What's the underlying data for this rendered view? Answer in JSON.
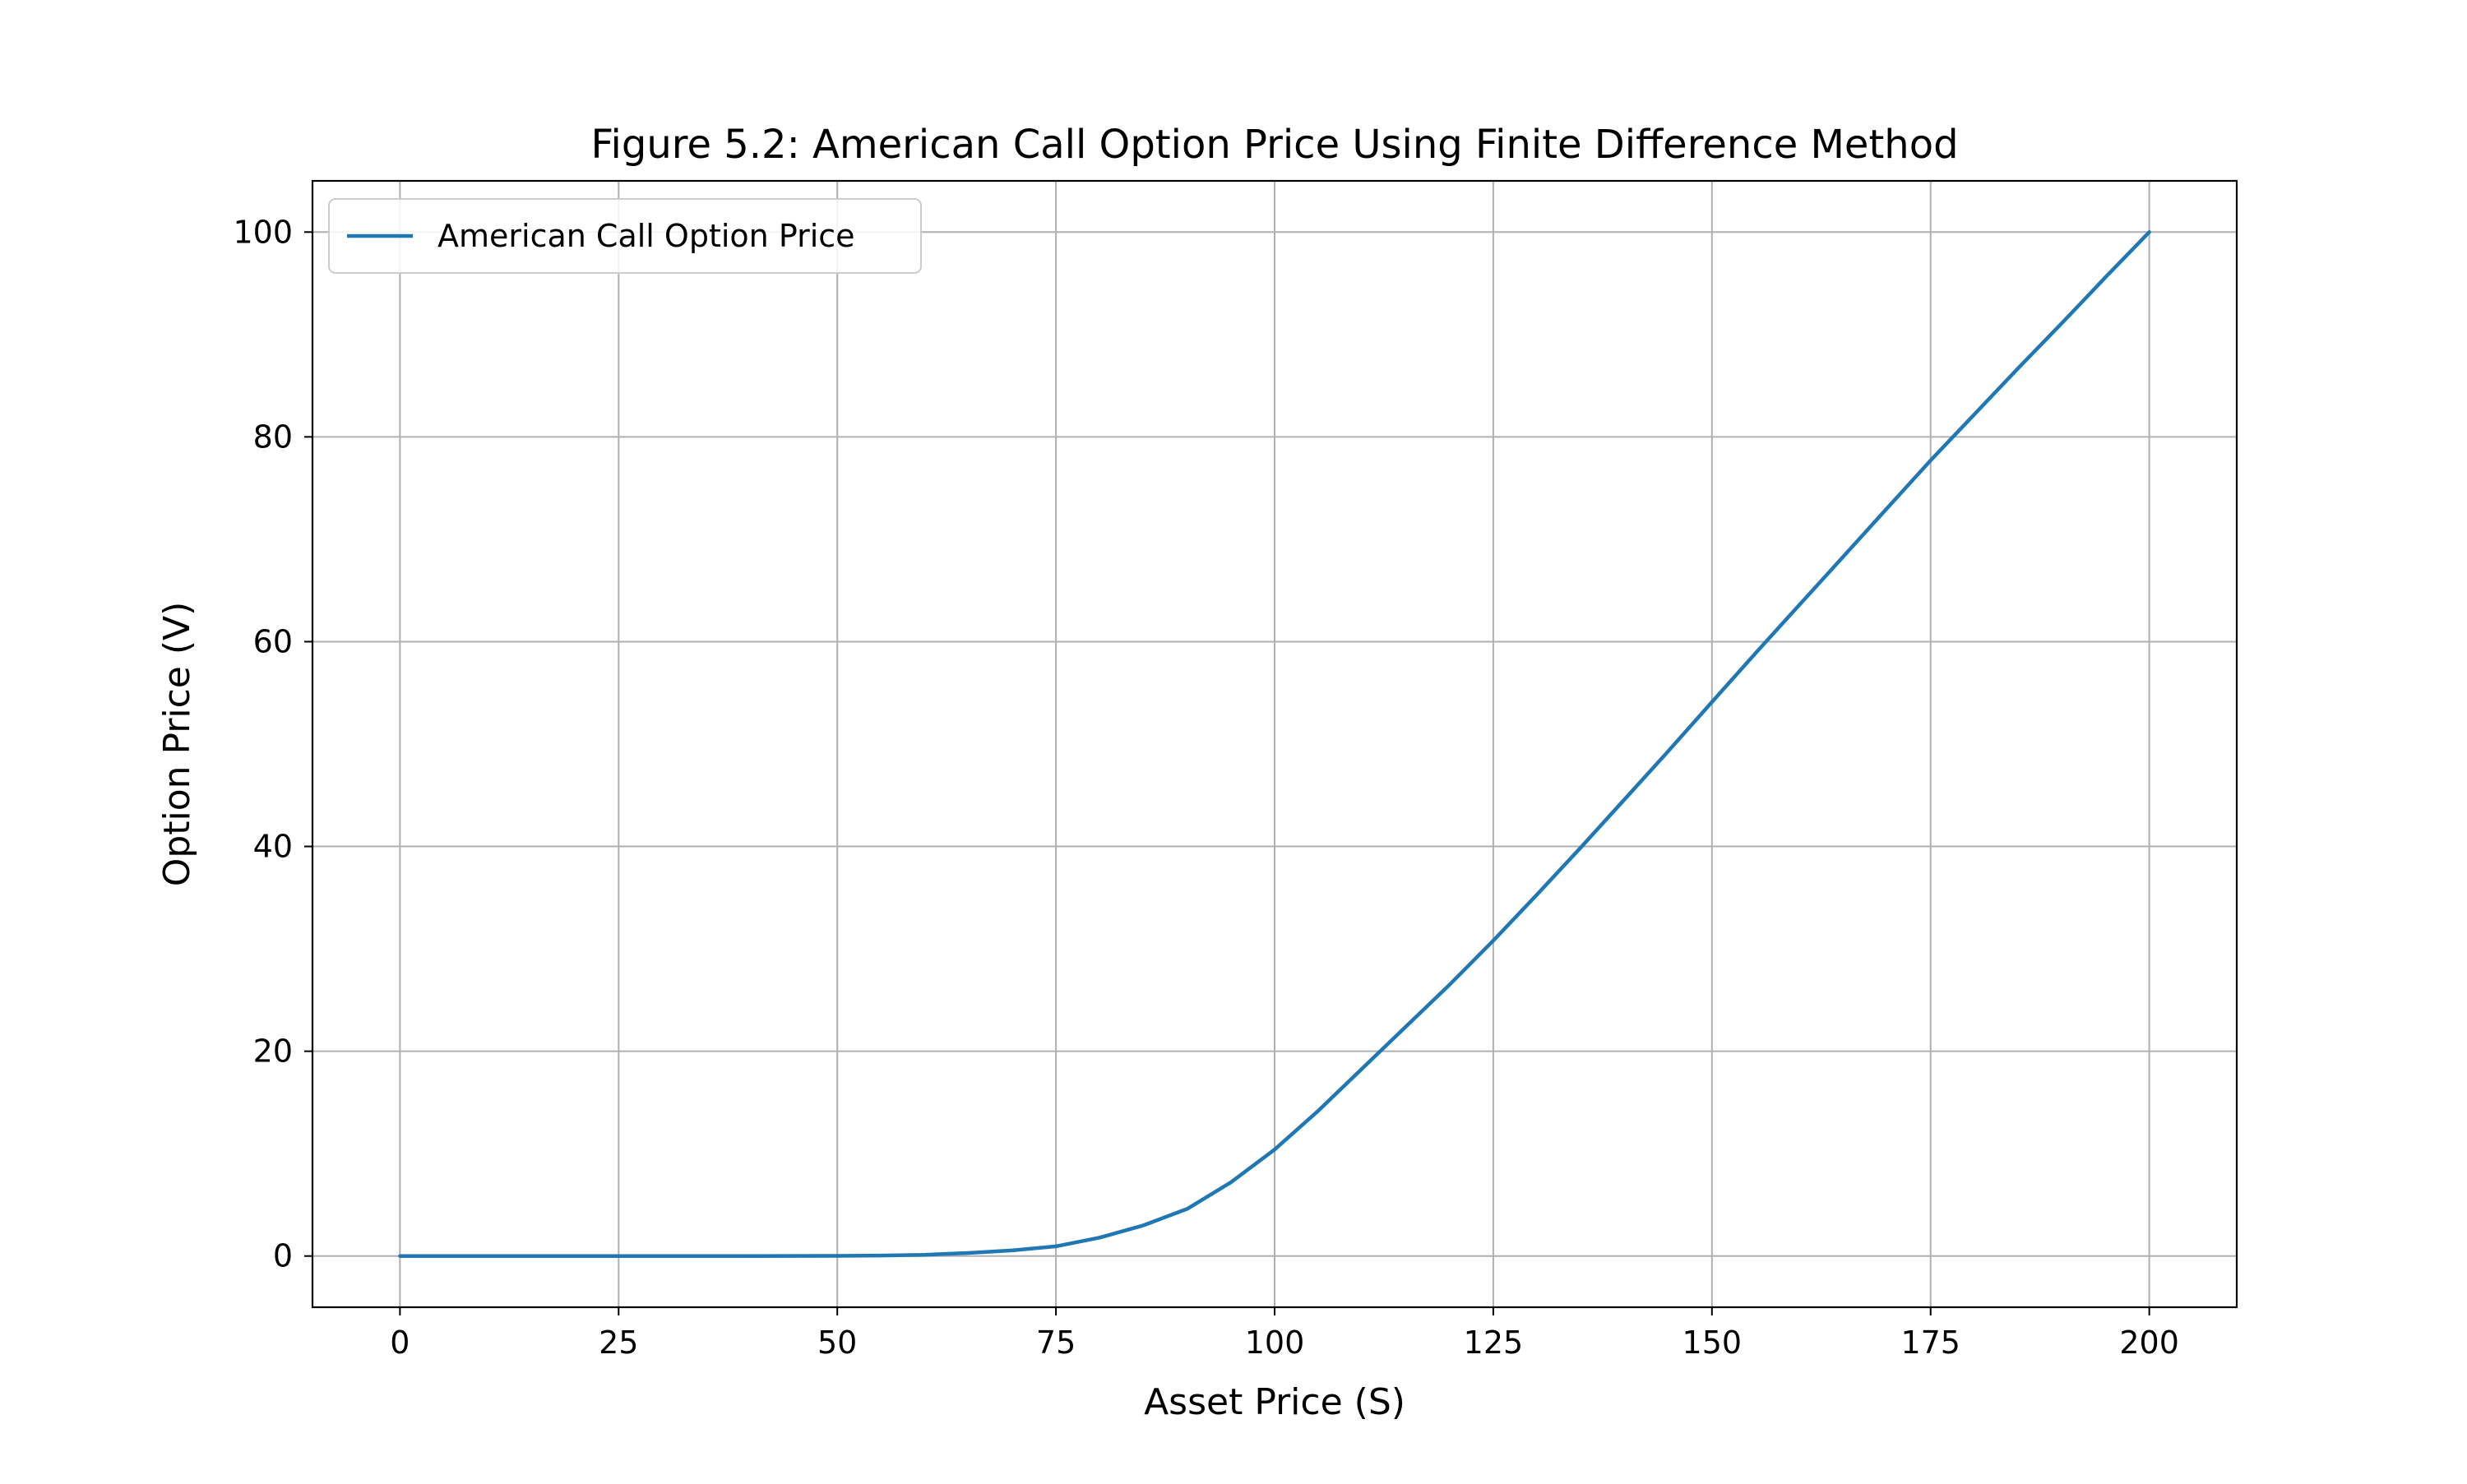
{
  "chart_data": {
    "type": "line",
    "title": "Figure 5.2: American Call Option Price Using Finite Difference Method",
    "xlabel": "Asset Price (S)",
    "ylabel": "Option Price (V)",
    "xlim": [
      -10,
      210
    ],
    "ylim": [
      -5,
      105
    ],
    "xticks": [
      0,
      25,
      50,
      75,
      100,
      125,
      150,
      175,
      200
    ],
    "yticks": [
      0,
      20,
      40,
      60,
      80,
      100
    ],
    "grid": true,
    "legend_position": "upper-left",
    "series": [
      {
        "name": "American Call Option Price",
        "color": "#1f77b4",
        "x": [
          0,
          10,
          20,
          30,
          40,
          50,
          55,
          60,
          65,
          70,
          75,
          80,
          85,
          90,
          95,
          100,
          105,
          110,
          115,
          120,
          125,
          130,
          135,
          140,
          145,
          150,
          155,
          160,
          165,
          170,
          175,
          180,
          185,
          190,
          195,
          200
        ],
        "y": [
          0,
          0,
          0,
          0,
          0,
          0.02,
          0.05,
          0.12,
          0.3,
          0.55,
          0.95,
          1.8,
          3.0,
          4.6,
          7.2,
          10.4,
          14.2,
          18.3,
          22.4,
          26.5,
          30.8,
          35.3,
          39.9,
          44.6,
          49.3,
          54.1,
          58.9,
          63.6,
          68.3,
          73.0,
          77.7,
          82.2,
          86.7,
          91.1,
          95.6,
          100
        ]
      }
    ]
  }
}
